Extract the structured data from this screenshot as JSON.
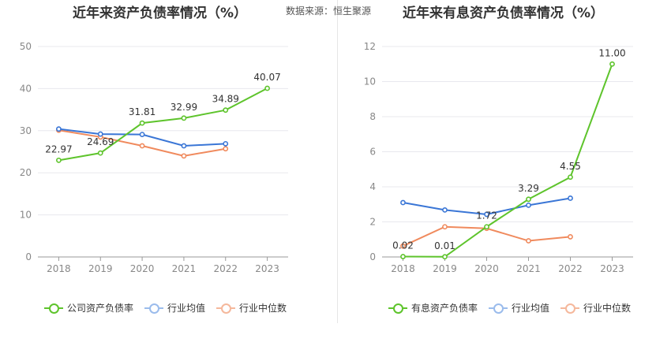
{
  "source_label": "数据来源：恒生聚源",
  "chart_data": [
    {
      "type": "line",
      "title": "近年来资产负债率情况（%）",
      "x": [
        "2018",
        "2019",
        "2020",
        "2021",
        "2022",
        "2023"
      ],
      "ylim": [
        0,
        50
      ],
      "yticks": [
        0,
        10,
        20,
        30,
        40,
        50
      ],
      "grid": true,
      "legend_position": "bottom",
      "series": [
        {
          "name": "公司资产负债率",
          "color": "#5ec42c",
          "values": [
            22.97,
            24.69,
            31.81,
            32.99,
            34.89,
            40.07
          ],
          "labels": [
            "22.97",
            "24.69",
            "31.81",
            "32.99",
            "34.89",
            "40.07"
          ]
        },
        {
          "name": "行业均值",
          "color": "#3a76d6",
          "values": [
            30.4,
            29.2,
            29.1,
            26.4,
            26.9,
            null
          ]
        },
        {
          "name": "行业中位数",
          "color": "#f08a5d",
          "values": [
            30.1,
            28.5,
            26.4,
            24.0,
            25.7,
            null
          ]
        }
      ]
    },
    {
      "type": "line",
      "title": "近年来有息资产负债率情况（%）",
      "x": [
        "2018",
        "2019",
        "2020",
        "2021",
        "2022",
        "2023"
      ],
      "ylim": [
        0,
        12
      ],
      "yticks": [
        0,
        2,
        4,
        6,
        8,
        10,
        12
      ],
      "grid": true,
      "legend_position": "bottom",
      "series": [
        {
          "name": "有息资产负债率",
          "color": "#5ec42c",
          "values": [
            0.02,
            0.01,
            1.72,
            3.29,
            4.55,
            11.0
          ],
          "labels": [
            "0.02",
            "0.01",
            "1.72",
            "3.29",
            "4.55",
            "11.00"
          ]
        },
        {
          "name": "行业均值",
          "color": "#3a76d6",
          "values": [
            3.1,
            2.68,
            2.43,
            2.95,
            3.35,
            null
          ]
        },
        {
          "name": "行业中位数",
          "color": "#f08a5d",
          "values": [
            0.62,
            1.72,
            1.63,
            0.92,
            1.15,
            null
          ]
        }
      ]
    }
  ]
}
